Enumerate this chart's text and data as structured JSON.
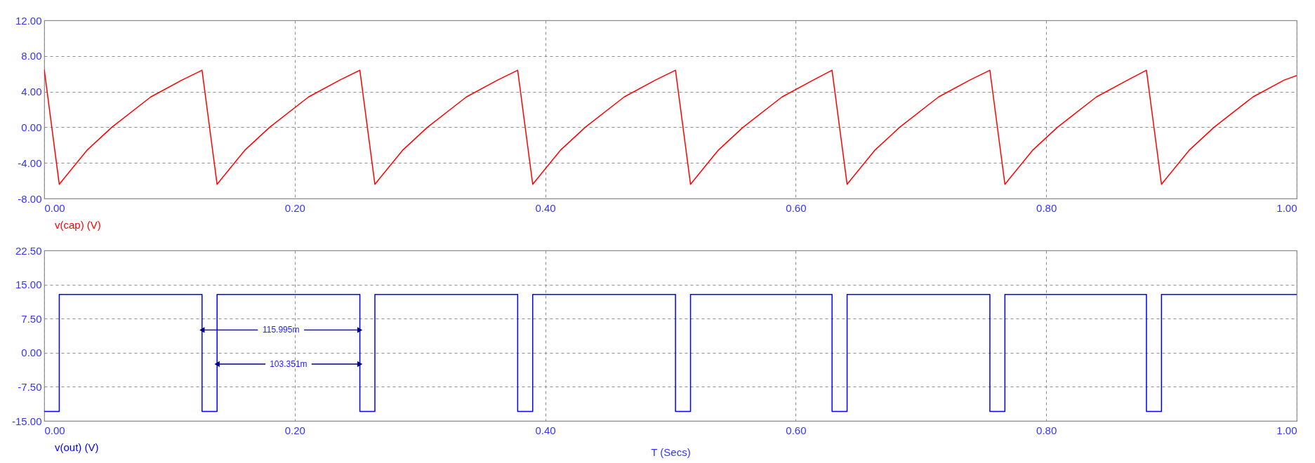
{
  "chart_data": [
    {
      "type": "line",
      "xlim": [
        0,
        1
      ],
      "ylim": [
        -8,
        12
      ],
      "grid": true,
      "legend": "bottom left",
      "xticks": [
        {
          "value": 0,
          "label": "0.00"
        },
        {
          "value": 0.2,
          "label": "0.20"
        },
        {
          "value": 0.4,
          "label": "0.40"
        },
        {
          "value": 0.6,
          "label": "0.60"
        },
        {
          "value": 0.8,
          "label": "0.80"
        },
        {
          "value": 1,
          "label": "1.00"
        }
      ],
      "yticks": [
        {
          "value": -8,
          "label": "-8.00"
        },
        {
          "value": -4,
          "label": "-4.00"
        },
        {
          "value": 0,
          "label": "0.00"
        },
        {
          "value": 4,
          "label": "4.00"
        },
        {
          "value": 8,
          "label": "8.00"
        },
        {
          "value": 12,
          "label": "12.00"
        }
      ],
      "x": [
        0,
        0.012,
        0.034,
        0.054,
        0.085,
        0.11,
        0.126,
        0.138,
        0.16,
        0.18,
        0.211,
        0.236,
        0.252,
        0.264,
        0.286,
        0.306,
        0.337,
        0.362,
        0.378,
        0.39,
        0.412,
        0.432,
        0.463,
        0.488,
        0.504,
        0.516,
        0.538,
        0.558,
        0.589,
        0.614,
        0.629,
        0.641,
        0.663,
        0.683,
        0.714,
        0.739,
        0.755,
        0.767,
        0.789,
        0.809,
        0.84,
        0.865,
        0.88,
        0.892,
        0.914,
        0.934,
        0.965,
        0.99,
        1.0
      ],
      "series": [
        {
          "name": "v(cap) (V)",
          "color": "#ff0000",
          "values": [
            6.5,
            -6.4,
            -2.6,
            0.0,
            3.4,
            5.3,
            6.4,
            -6.4,
            -2.6,
            0.0,
            3.4,
            5.3,
            6.4,
            -6.4,
            -2.6,
            0.0,
            3.4,
            5.3,
            6.4,
            -6.4,
            -2.6,
            0.0,
            3.4,
            5.3,
            6.4,
            -6.4,
            -2.6,
            0.0,
            3.4,
            5.3,
            6.4,
            -6.4,
            -2.6,
            0.0,
            3.4,
            5.3,
            6.4,
            -6.4,
            -2.6,
            0.0,
            3.4,
            5.3,
            6.4,
            -6.4,
            -2.6,
            0.0,
            3.4,
            5.3,
            5.8
          ]
        }
      ]
    },
    {
      "type": "step",
      "xlabel": "T (Secs)",
      "xlim": [
        0,
        1
      ],
      "ylim": [
        -15,
        22.5
      ],
      "grid": true,
      "legend": "bottom left",
      "xticks": [
        {
          "value": 0,
          "label": "0.00"
        },
        {
          "value": 0.2,
          "label": "0.20"
        },
        {
          "value": 0.4,
          "label": "0.40"
        },
        {
          "value": 0.6,
          "label": "0.60"
        },
        {
          "value": 0.8,
          "label": "0.80"
        },
        {
          "value": 1,
          "label": "1.00"
        }
      ],
      "yticks": [
        {
          "value": -15,
          "label": "-15.00"
        },
        {
          "value": -7.5,
          "label": "-7.50"
        },
        {
          "value": 0,
          "label": "0.00"
        },
        {
          "value": 7.5,
          "label": "7.50"
        },
        {
          "value": 15,
          "label": "15.00"
        },
        {
          "value": 22.5,
          "label": "22.50"
        }
      ],
      "x": [
        0,
        0.012,
        0.126,
        0.138,
        0.252,
        0.264,
        0.378,
        0.39,
        0.504,
        0.516,
        0.629,
        0.641,
        0.755,
        0.767,
        0.88,
        0.892,
        1.0
      ],
      "series": [
        {
          "name": "v(out) (V)",
          "color": "#0000ff",
          "values": [
            -12.9,
            12.8,
            -12.9,
            12.8,
            -12.9,
            12.8,
            -12.9,
            12.8,
            -12.9,
            12.8,
            -12.9,
            12.8,
            -12.9,
            12.8,
            -12.9,
            12.8,
            12.8
          ]
        }
      ],
      "annotations": [
        {
          "text": "115.995m",
          "x": 0.252,
          "y": 5
        },
        {
          "text": "103.351m",
          "x": 0.252,
          "y": -2.5
        }
      ]
    }
  ]
}
